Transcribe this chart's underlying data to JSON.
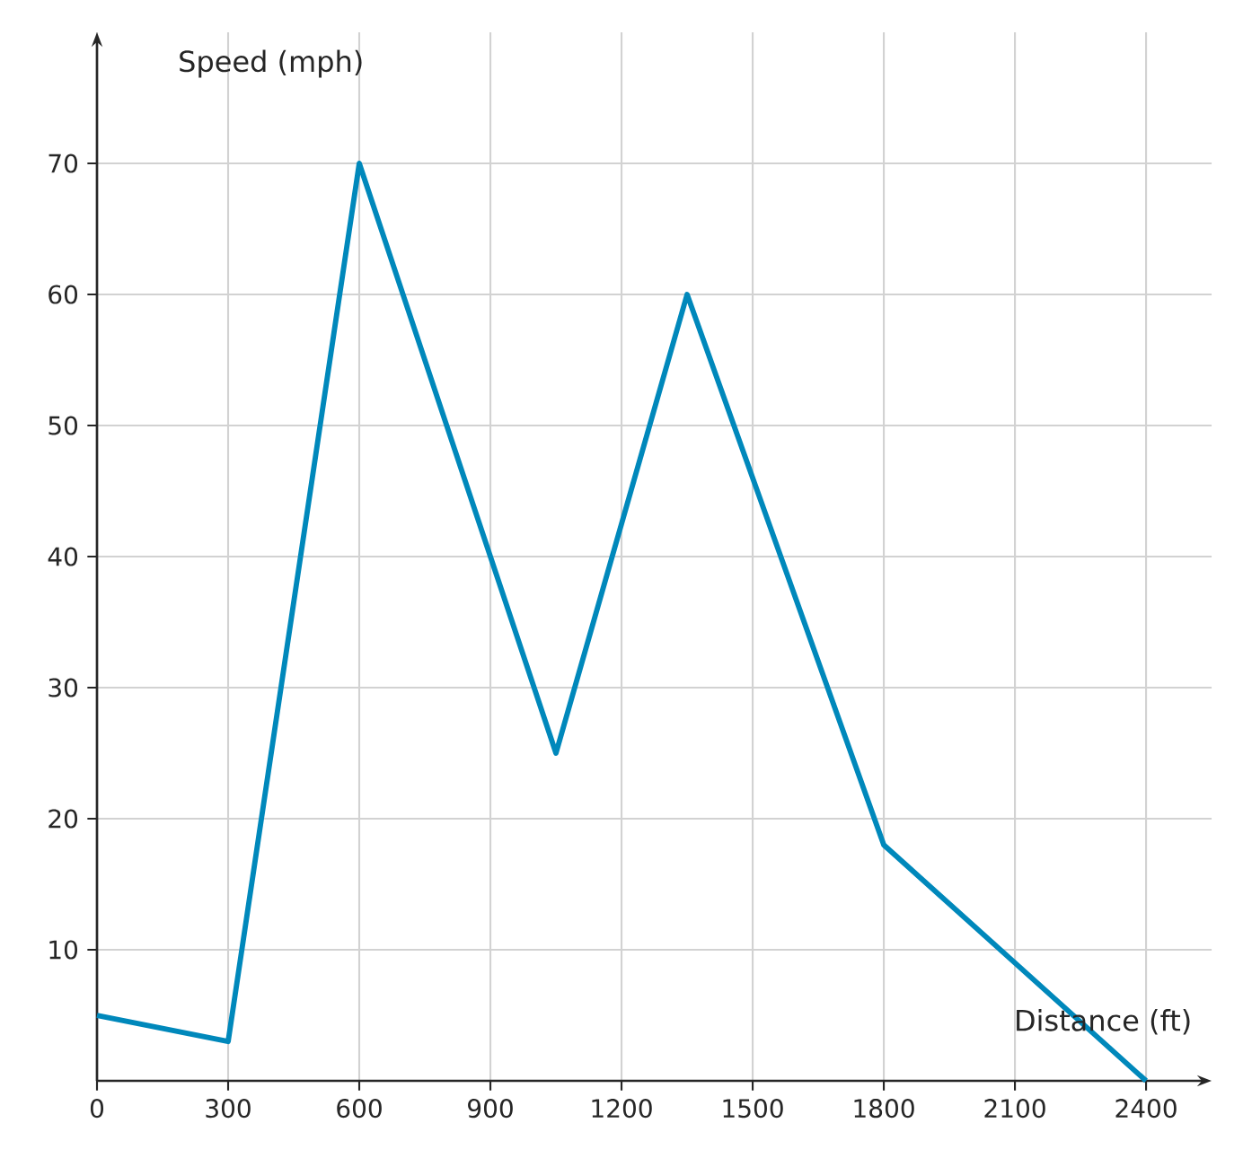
{
  "chart_data": {
    "type": "line",
    "xlabel": "Distance (ft)",
    "ylabel": "Speed (mph)",
    "x": [
      0,
      300,
      600,
      1050,
      1350,
      1800,
      2400
    ],
    "values": [
      5,
      3,
      70,
      25,
      60,
      18,
      0
    ],
    "color": "#0088bb",
    "xlim": [
      0,
      2550
    ],
    "ylim": [
      0,
      80
    ],
    "xticks": [
      0,
      300,
      600,
      900,
      1200,
      1500,
      1800,
      2100,
      2400
    ],
    "yticks": [
      10,
      20,
      30,
      40,
      50,
      60,
      70
    ],
    "grid": true
  }
}
